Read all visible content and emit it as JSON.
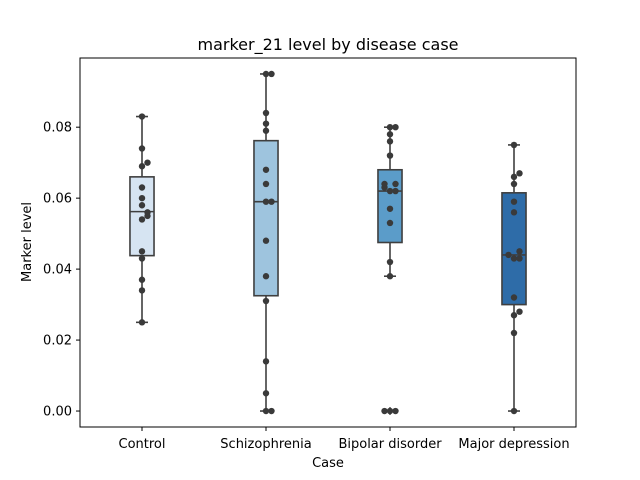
{
  "chart_data": {
    "type": "box",
    "title": "marker_21 level by disease case",
    "xlabel": "Case",
    "ylabel": "Marker level",
    "ylim": [
      -0.0045,
      0.0995
    ],
    "yticks": [
      "0.00",
      "0.02",
      "0.04",
      "0.06",
      "0.08"
    ],
    "yticks_values": [
      0.0,
      0.02,
      0.04,
      0.06,
      0.08
    ],
    "grid": false,
    "categories": [
      "Control",
      "Schizophrenia",
      "Bipolar disorder",
      "Major depression"
    ],
    "colors": [
      "#d6e4f2",
      "#9ec4de",
      "#5b9cc9",
      "#2e6ca8"
    ],
    "boxes": [
      {
        "category": "Control",
        "q1": 0.0438,
        "median": 0.0562,
        "q3": 0.066,
        "whisker_low": 0.025,
        "whisker_high": 0.083,
        "outliers": []
      },
      {
        "category": "Schizophrenia",
        "q1": 0.0325,
        "median": 0.059,
        "q3": 0.0762,
        "whisker_low": 0.0,
        "whisker_high": 0.095,
        "outliers": []
      },
      {
        "category": "Bipolar disorder",
        "q1": 0.0475,
        "median": 0.062,
        "q3": 0.068,
        "whisker_low": 0.038,
        "whisker_high": 0.08,
        "outliers": [
          0.0,
          0.0,
          0.0
        ]
      },
      {
        "category": "Major depression",
        "q1": 0.03,
        "median": 0.044,
        "q3": 0.0615,
        "whisker_low": 0.0,
        "whisker_high": 0.075,
        "outliers": []
      }
    ],
    "points": [
      {
        "category": "Control",
        "values": [
          0.083,
          0.074,
          0.07,
          0.069,
          0.063,
          0.06,
          0.058,
          0.056,
          0.055,
          0.054,
          0.045,
          0.043,
          0.037,
          0.034,
          0.025
        ]
      },
      {
        "category": "Schizophrenia",
        "values": [
          0.095,
          0.095,
          0.084,
          0.081,
          0.079,
          0.068,
          0.064,
          0.059,
          0.059,
          0.048,
          0.038,
          0.031,
          0.014,
          0.005,
          0.0,
          0.0
        ]
      },
      {
        "category": "Bipolar disorder",
        "values": [
          0.08,
          0.08,
          0.078,
          0.076,
          0.072,
          0.064,
          0.064,
          0.063,
          0.062,
          0.062,
          0.057,
          0.053,
          0.042,
          0.038,
          0.0,
          0.0,
          0.0
        ]
      },
      {
        "category": "Major depression",
        "values": [
          0.075,
          0.067,
          0.066,
          0.064,
          0.059,
          0.056,
          0.045,
          0.044,
          0.043,
          0.043,
          0.032,
          0.028,
          0.027,
          0.022,
          0.0
        ]
      }
    ]
  }
}
